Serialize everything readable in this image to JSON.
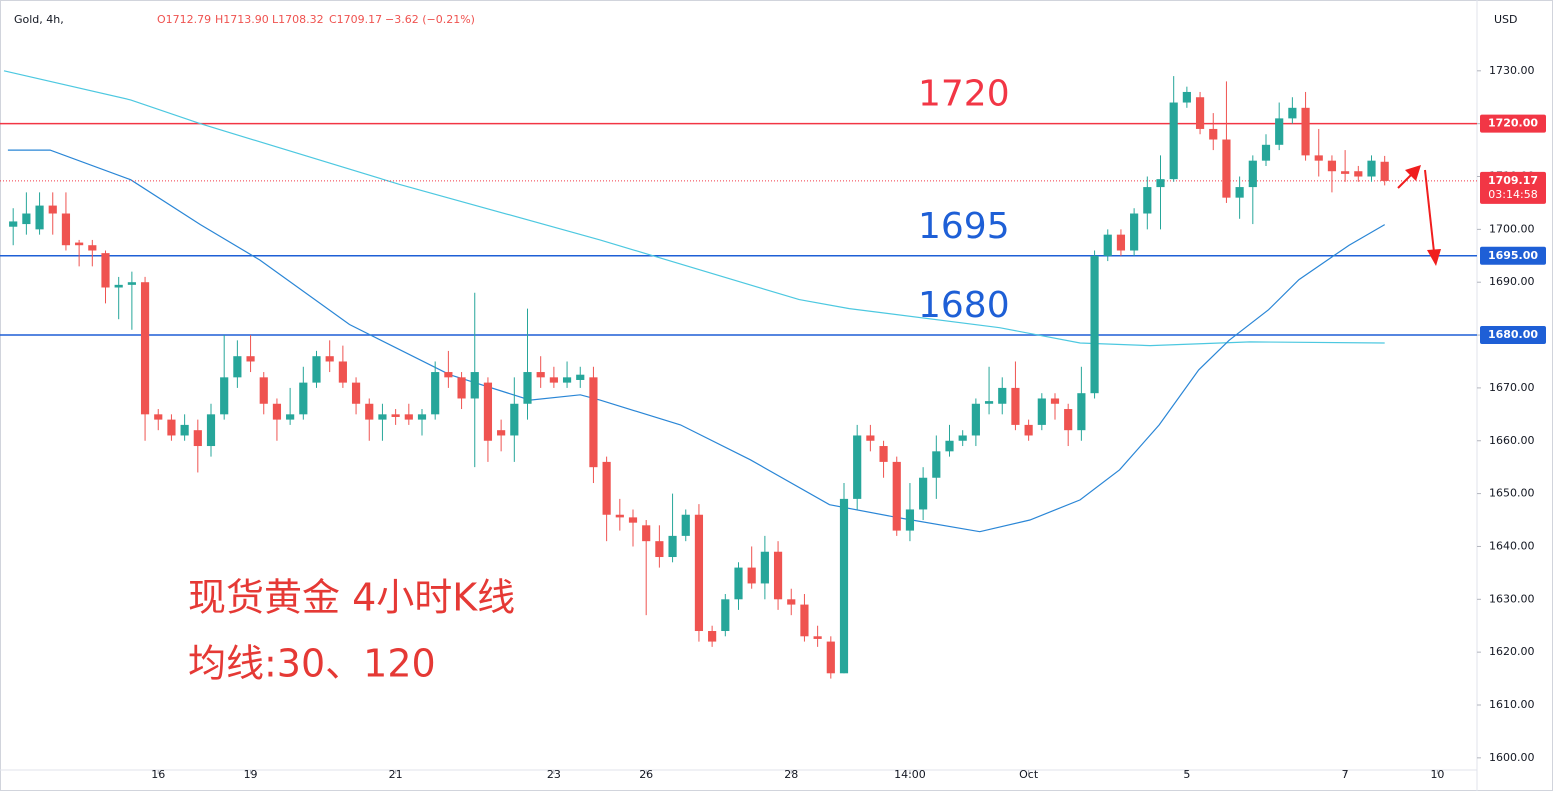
{
  "header": {
    "symbol": "Gold, 4h,",
    "open": "O1712.79",
    "high": "H1713.90",
    "low": "L1708.32",
    "close": "C1709.17",
    "change": "−3.62 (−0.21%)"
  },
  "chart_data": {
    "type": "candlestick",
    "currency": "USD",
    "up_color": "#26a69a",
    "down_color": "#ef5350",
    "x": [
      0,
      1,
      2,
      3,
      4,
      5,
      6,
      7,
      8,
      9,
      10,
      11,
      12,
      13,
      14,
      15,
      16,
      17,
      18,
      19,
      20,
      21,
      22,
      23,
      24,
      25,
      26,
      27,
      28,
      29,
      30,
      31,
      32,
      33,
      34,
      35,
      36,
      37,
      38,
      39,
      40,
      41,
      42,
      43,
      44,
      45,
      46,
      47,
      48,
      49,
      50,
      51,
      52,
      53,
      54,
      55,
      56,
      57,
      58,
      59,
      60,
      61,
      62,
      63,
      64,
      65,
      66,
      67,
      68,
      69,
      70,
      71,
      72,
      73,
      74,
      75,
      76,
      77,
      78,
      79,
      80,
      81,
      82,
      83,
      84,
      85,
      86,
      87,
      88,
      89,
      90,
      91,
      92,
      93,
      94,
      95,
      96,
      97,
      98,
      99,
      100,
      101,
      102,
      103,
      104
    ],
    "open": [
      1700.5,
      1701,
      1700,
      1704.5,
      1703,
      1697.5,
      1697,
      1695.5,
      1689,
      1689.5,
      1690,
      1665,
      1664,
      1661,
      1662,
      1659,
      1665,
      1672,
      1676,
      1672,
      1667,
      1664,
      1665,
      1671,
      1676,
      1675,
      1671,
      1667,
      1664,
      1665,
      1665,
      1664,
      1665,
      1673,
      1672,
      1668,
      1671,
      1662,
      1661,
      1667,
      1673,
      1672,
      1671,
      1671.5,
      1672,
      1656,
      1646,
      1645.5,
      1644,
      1641,
      1638,
      1642,
      1646,
      1624,
      1624,
      1630,
      1636,
      1633,
      1639,
      1630,
      1629,
      1623,
      1622,
      1616,
      1649,
      1661,
      1659,
      1656,
      1643,
      1647,
      1653,
      1658,
      1660,
      1661,
      1667,
      1667,
      1670,
      1663,
      1663,
      1668,
      1666,
      1662,
      1669,
      1695,
      1699,
      1696,
      1703,
      1708,
      1709.5,
      1724,
      1725,
      1719,
      1717,
      1706,
      1708,
      1713,
      1716,
      1721,
      1723,
      1714,
      1713,
      1711,
      1711,
      1710,
      1712.79
    ],
    "high": [
      1704,
      1707,
      1707,
      1707,
      1707,
      1698,
      1698,
      1696,
      1691,
      1692,
      1691,
      1666,
      1665,
      1665,
      1664,
      1667,
      1680,
      1679,
      1680,
      1673,
      1668,
      1670,
      1674,
      1677,
      1679,
      1678,
      1672,
      1668,
      1667,
      1666,
      1667,
      1666,
      1675,
      1677,
      1673,
      1688,
      1672,
      1664,
      1672,
      1685,
      1676,
      1674,
      1675,
      1674,
      1674,
      1657,
      1649,
      1647,
      1645,
      1644,
      1650,
      1647,
      1648,
      1625,
      1631,
      1637,
      1640,
      1642,
      1641,
      1632,
      1631,
      1625,
      1623,
      1652,
      1663,
      1663,
      1660,
      1657,
      1652,
      1655,
      1661,
      1663,
      1662,
      1668,
      1674,
      1672,
      1675,
      1664,
      1669,
      1669,
      1667,
      1674,
      1696,
      1700,
      1700,
      1704,
      1710,
      1714,
      1729,
      1727,
      1726,
      1722,
      1728,
      1710,
      1714,
      1718,
      1724,
      1725,
      1726,
      1719,
      1714,
      1715,
      1712,
      1714,
      1713.9
    ],
    "low": [
      1697,
      1699,
      1699,
      1699,
      1696,
      1693,
      1693,
      1686,
      1683,
      1681,
      1660,
      1662,
      1660,
      1660,
      1654,
      1657,
      1664,
      1670,
      1673,
      1665,
      1660,
      1663,
      1664,
      1670,
      1673,
      1670,
      1665,
      1660,
      1660,
      1663,
      1663,
      1661,
      1664,
      1670,
      1666,
      1655,
      1656,
      1658,
      1656,
      1664,
      1670,
      1670,
      1670,
      1670,
      1652,
      1641,
      1643,
      1640,
      1627,
      1636,
      1637,
      1641,
      1622,
      1621,
      1623,
      1628,
      1632,
      1630,
      1628,
      1627,
      1622,
      1621,
      1615,
      1616,
      1647,
      1658,
      1653,
      1642,
      1641,
      1645,
      1649,
      1657,
      1659,
      1659,
      1665,
      1665,
      1662,
      1660,
      1662,
      1664,
      1659,
      1660,
      1668,
      1694,
      1695,
      1695,
      1700,
      1700,
      1709,
      1723,
      1718,
      1715,
      1705,
      1702,
      1701,
      1712,
      1715,
      1720,
      1713,
      1710,
      1707,
      1709,
      1709,
      1709,
      1708.32
    ],
    "close": [
      1701.5,
      1703,
      1704.5,
      1703,
      1697,
      1697,
      1696,
      1689,
      1689.5,
      1690,
      1665,
      1664,
      1661,
      1663,
      1659,
      1665,
      1672,
      1676,
      1675,
      1667,
      1664,
      1665,
      1671,
      1676,
      1675,
      1671,
      1667,
      1664,
      1665,
      1664.5,
      1664,
      1665,
      1673,
      1672,
      1668,
      1673,
      1660,
      1661,
      1667,
      1673,
      1672,
      1671,
      1672,
      1672.5,
      1655,
      1646,
      1645.5,
      1644.5,
      1641,
      1638,
      1642,
      1646,
      1624,
      1622,
      1630,
      1636,
      1633,
      1639,
      1630,
      1629,
      1623,
      1622.5,
      1616,
      1649,
      1661,
      1660,
      1656,
      1643,
      1647,
      1653,
      1658,
      1660,
      1661,
      1667,
      1667.5,
      1670,
      1663,
      1661,
      1668,
      1667,
      1662,
      1669,
      1695,
      1699,
      1696,
      1703,
      1708,
      1709.5,
      1724,
      1726,
      1719,
      1717,
      1706,
      1708,
      1713,
      1716,
      1721,
      1723,
      1714,
      1713,
      1711,
      1710.5,
      1710,
      1713,
      1709.17
    ],
    "moving_averages": [
      {
        "period": 120,
        "color": "#4dc8e0",
        "x": [
          -0.7,
          8.9,
          14.2,
          29.3,
          44.5,
          59.6,
          63.4,
          74.8,
          80.9,
          86.2,
          93.8,
          104
        ],
        "values": [
          1730,
          1724.5,
          1720,
          1708.5,
          1698,
          1686.7,
          1685,
          1681.4,
          1678.5,
          1678,
          1678.7,
          1678.5
        ]
      },
      {
        "period": 30,
        "color": "#2a86d6",
        "x": [
          -0.4,
          2.8,
          8.9,
          14.2,
          18.7,
          25.5,
          33.1,
          39.2,
          43,
          44.5,
          50.6,
          55.9,
          61.9,
          67.2,
          73.3,
          77.1,
          80.9,
          83.9,
          86.9,
          89.9,
          92.2,
          95.2,
          97.5,
          101.3,
          104
        ],
        "values": [
          1715,
          1715,
          1709.4,
          1700.9,
          1694.2,
          1682,
          1672.5,
          1667.7,
          1668.7,
          1667.7,
          1663,
          1656.4,
          1647.9,
          1645.4,
          1642.8,
          1645,
          1648.8,
          1654.5,
          1663,
          1673.4,
          1679,
          1684.8,
          1690.5,
          1697,
          1700.9
        ]
      }
    ],
    "levels": [
      {
        "value": 1720,
        "label": "1720.00",
        "annotation": "1720",
        "color": "#f23645"
      },
      {
        "value": 1695,
        "label": "1695.00",
        "annotation": "1695",
        "color": "#1e5fd6"
      },
      {
        "value": 1680,
        "label": "1680.00",
        "annotation": "1680",
        "color": "#1e5fd6"
      }
    ],
    "last_price": {
      "value": 1709.17,
      "label": "1709.17",
      "countdown": "03:14:58",
      "color": "#f23645"
    },
    "notes": [
      "现货黄金 4小时K线",
      "均线:30、120"
    ],
    "xlim": [
      -1,
      111
    ],
    "xticks": [
      {
        "value": 11,
        "label": "16"
      },
      {
        "value": 18,
        "label": "19"
      },
      {
        "value": 29,
        "label": "21"
      },
      {
        "value": 41,
        "label": "23"
      },
      {
        "value": 48,
        "label": "26"
      },
      {
        "value": 59,
        "label": "28"
      },
      {
        "value": 68,
        "label": "14:00"
      },
      {
        "value": 77,
        "label": "Oct"
      },
      {
        "value": 89,
        "label": "5"
      },
      {
        "value": 101,
        "label": "7"
      },
      {
        "value": 108,
        "label": "10"
      }
    ],
    "ylim": [
      1597.7,
      1743.4
    ],
    "yticks": [
      {
        "value": 1600,
        "label": "1600.00"
      },
      {
        "value": 1610,
        "label": "1610.00"
      },
      {
        "value": 1620,
        "label": "1620.00"
      },
      {
        "value": 1630,
        "label": "1630.00"
      },
      {
        "value": 1640,
        "label": "1640.00"
      },
      {
        "value": 1650,
        "label": "1650.00"
      },
      {
        "value": 1660,
        "label": "1660.00"
      },
      {
        "value": 1670,
        "label": "1670.00"
      },
      {
        "value": 1680,
        "label": "1680.00"
      },
      {
        "value": 1690,
        "label": "1690.00"
      },
      {
        "value": 1700,
        "label": "1700.00"
      },
      {
        "value": 1710,
        "label": "1710.00"
      },
      {
        "value": 1720,
        "label": "1720.00"
      },
      {
        "value": 1730,
        "label": "1730.00"
      }
    ],
    "grid": false
  }
}
